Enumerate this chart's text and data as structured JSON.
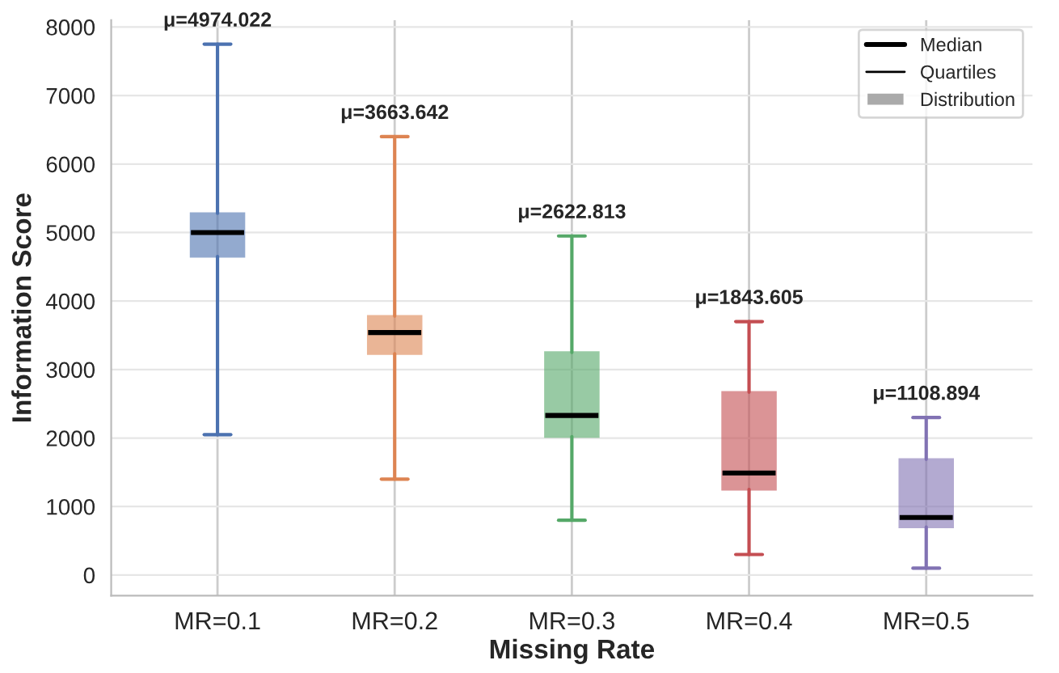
{
  "chart_data": {
    "type": "box",
    "xlabel": "Missing Rate",
    "ylabel": "Information Score",
    "categories": [
      "MR=0.1",
      "MR=0.2",
      "MR=0.3",
      "MR=0.4",
      "MR=0.5"
    ],
    "boxes": [
      {
        "low": 2050,
        "q1": 4650,
        "median": 5000,
        "q3": 5280,
        "high": 7750
      },
      {
        "low": 1400,
        "q1": 3230,
        "median": 3540,
        "q3": 3780,
        "high": 6400
      },
      {
        "low": 800,
        "q1": 2020,
        "median": 2330,
        "q3": 3250,
        "high": 4950
      },
      {
        "low": 300,
        "q1": 1250,
        "median": 1490,
        "q3": 2670,
        "high": 3700
      },
      {
        "low": 100,
        "q1": 700,
        "median": 840,
        "q3": 1690,
        "high": 2300
      }
    ],
    "colors": [
      "#4c72b0",
      "#dd8452",
      "#55a868",
      "#c44e52",
      "#8172b3"
    ],
    "annotations": [
      "μ=4974.022",
      "μ=3663.642",
      "μ=2622.813",
      "μ=1843.605",
      "μ=1108.894",
      "Median",
      "Quartiles",
      "Distribution"
    ],
    "ylim": [
      -300,
      8100
    ],
    "yticks": [
      0,
      1000,
      2000,
      3000,
      4000,
      5000,
      6000,
      7000,
      8000
    ],
    "grid": true
  }
}
